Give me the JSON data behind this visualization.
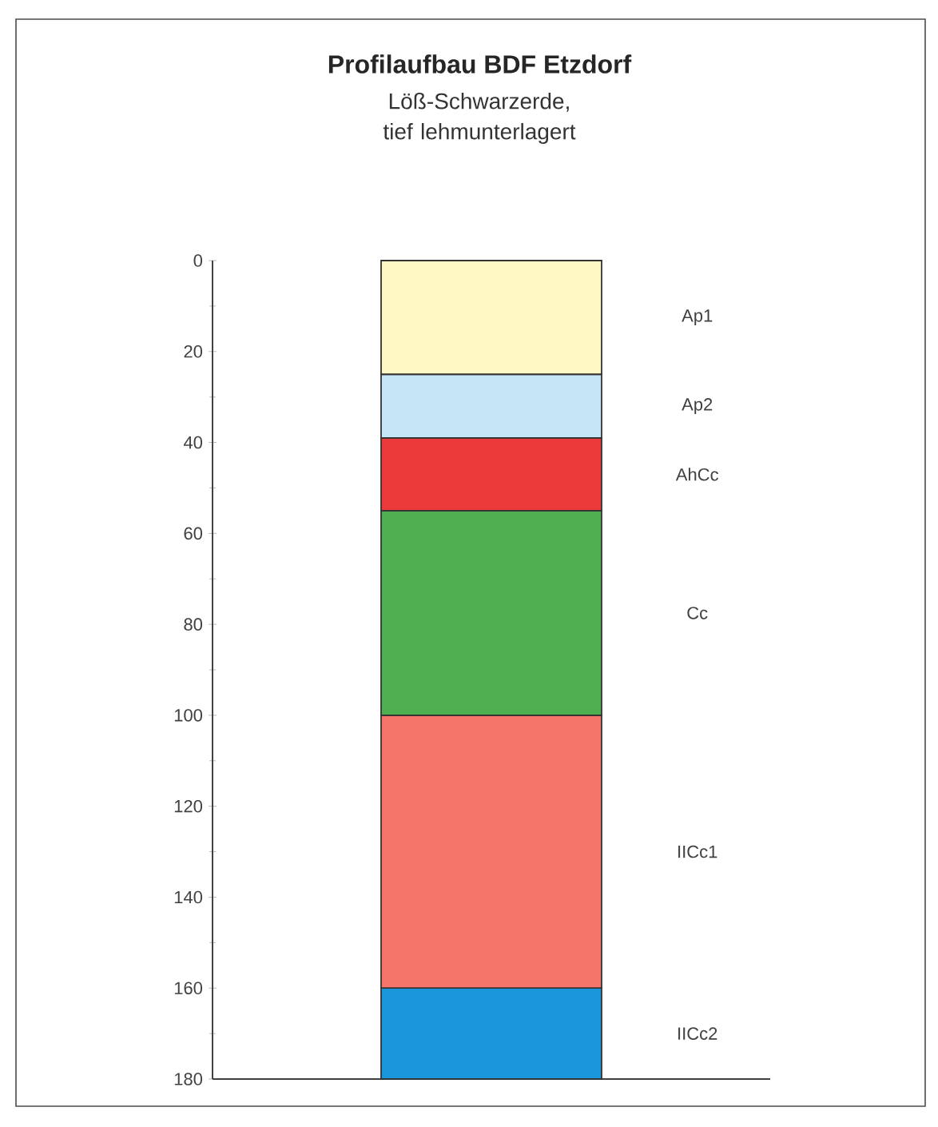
{
  "chart_data": {
    "type": "bar",
    "stacked": true,
    "title": "Profilaufbau BDF Etzdorf",
    "subtitle": "Löß-Schwarzerde, tief lehmunterlagert",
    "categories": [
      null
    ],
    "series": [
      {
        "name": "Ap1",
        "color": "#fdf8c4",
        "values": [
          25
        ]
      },
      {
        "name": "Ap2",
        "color": "#c4e6f6",
        "values": [
          14
        ]
      },
      {
        "name": "AhCc",
        "color": "#ec3a3a",
        "values": [
          16
        ]
      },
      {
        "name": "Cc",
        "color": "#4fae4f",
        "values": [
          45
        ]
      },
      {
        "name": "IICc1",
        "color": "#f6756a",
        "values": [
          60
        ]
      },
      {
        "name": "IICc2",
        "color": "#1a96dc",
        "values": [
          20
        ]
      }
    ],
    "ylim": [
      180,
      0
    ],
    "yticks": [
      0,
      20,
      40,
      60,
      80,
      100,
      120,
      140,
      160,
      180
    ],
    "tick_labels": "y"
  }
}
